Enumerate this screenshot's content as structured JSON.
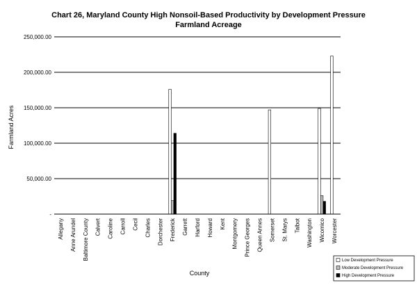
{
  "chart_data": {
    "type": "bar",
    "title": "Chart 26, Maryland County High Nonsoil-Based Productivity by Development Pressure",
    "subtitle": "Farmland Acreage",
    "xlabel": "County",
    "ylabel": "Farmland Acres",
    "ylim": [
      0,
      250000
    ],
    "yticks": [
      {
        "value": 0,
        "label": "-"
      },
      {
        "value": 50000,
        "label": "50,000.00"
      },
      {
        "value": 100000,
        "label": "100,000.00"
      },
      {
        "value": 150000,
        "label": "150,000.00"
      },
      {
        "value": 200000,
        "label": "200,000.00"
      },
      {
        "value": 250000,
        "label": "250,000.00"
      }
    ],
    "grid": true,
    "legend_position": "bottom-right",
    "categories": [
      "Allegany",
      "Anne Arundel",
      "Baltimore County",
      "Calvert",
      "Caroline",
      "Carroll",
      "Cecil",
      "Charles",
      "Dorchester",
      "Frederick",
      "Garrett",
      "Harford",
      "Howard",
      "Kent",
      "Montgomery",
      "Prince Georges",
      "Queen Annes",
      "Somerset",
      "St. Marys",
      "Talbot",
      "Washington",
      "Wicomico",
      "Worcester"
    ],
    "series": [
      {
        "name": "Low Development Pressure",
        "color": "#ffffff",
        "values": [
          0,
          0,
          0,
          0,
          0,
          0,
          0,
          0,
          0,
          176000,
          0,
          0,
          0,
          0,
          0,
          0,
          0,
          147000,
          0,
          0,
          0,
          149000,
          223000
        ]
      },
      {
        "name": "Moderate Development Pressure",
        "color": "#c0c0c0",
        "values": [
          0,
          0,
          0,
          0,
          0,
          0,
          0,
          0,
          0,
          19000,
          0,
          0,
          0,
          0,
          0,
          0,
          0,
          0,
          0,
          0,
          0,
          26000,
          0
        ]
      },
      {
        "name": "High Development Pressure",
        "color": "#000000",
        "values": [
          0,
          0,
          0,
          0,
          0,
          0,
          0,
          0,
          0,
          114000,
          0,
          0,
          0,
          0,
          0,
          0,
          0,
          0,
          0,
          0,
          0,
          18000,
          0
        ]
      }
    ]
  }
}
